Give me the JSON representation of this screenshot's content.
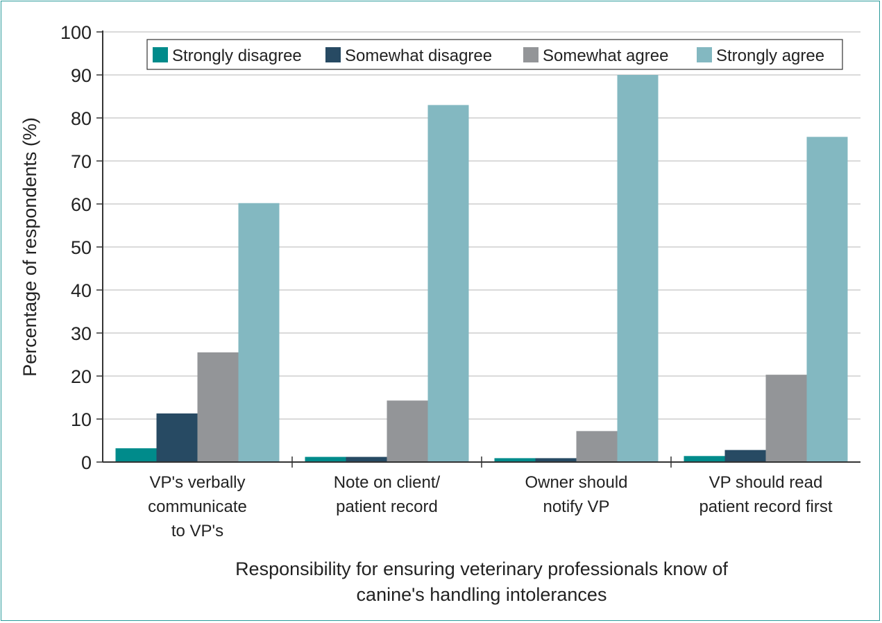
{
  "chart_data": {
    "type": "bar",
    "categories": [
      [
        "VP's verbally",
        "communicate",
        "to VP's"
      ],
      [
        "Note on client/",
        "patient record"
      ],
      [
        "Owner should",
        "notify VP"
      ],
      [
        "VP should read",
        "patient record first"
      ]
    ],
    "series": [
      {
        "name": "Strongly disagree",
        "color": "#008b8b",
        "values": [
          3.2,
          1.2,
          0.9,
          1.4
        ]
      },
      {
        "name": "Somewhat disagree",
        "color": "#274a63",
        "values": [
          11.3,
          1.2,
          0.9,
          2.8
        ]
      },
      {
        "name": "Somewhat agree",
        "color": "#939598",
        "values": [
          25.5,
          14.3,
          7.2,
          20.3
        ]
      },
      {
        "name": "Strongly agree",
        "color": "#83b8c1",
        "values": [
          60.2,
          83.0,
          90.0,
          75.6
        ]
      }
    ],
    "ylabel": "Percentage of respondents (%)",
    "xlabel": [
      "Responsibility for ensuring veterinary professionals know of",
      "canine's handling intolerances"
    ],
    "ylim": [
      0,
      100
    ],
    "yticks": [
      "0",
      "10",
      "20",
      "30",
      "40",
      "50",
      "60",
      "70",
      "80",
      "90",
      "100"
    ],
    "grid": true,
    "legend_position": "top-right"
  }
}
